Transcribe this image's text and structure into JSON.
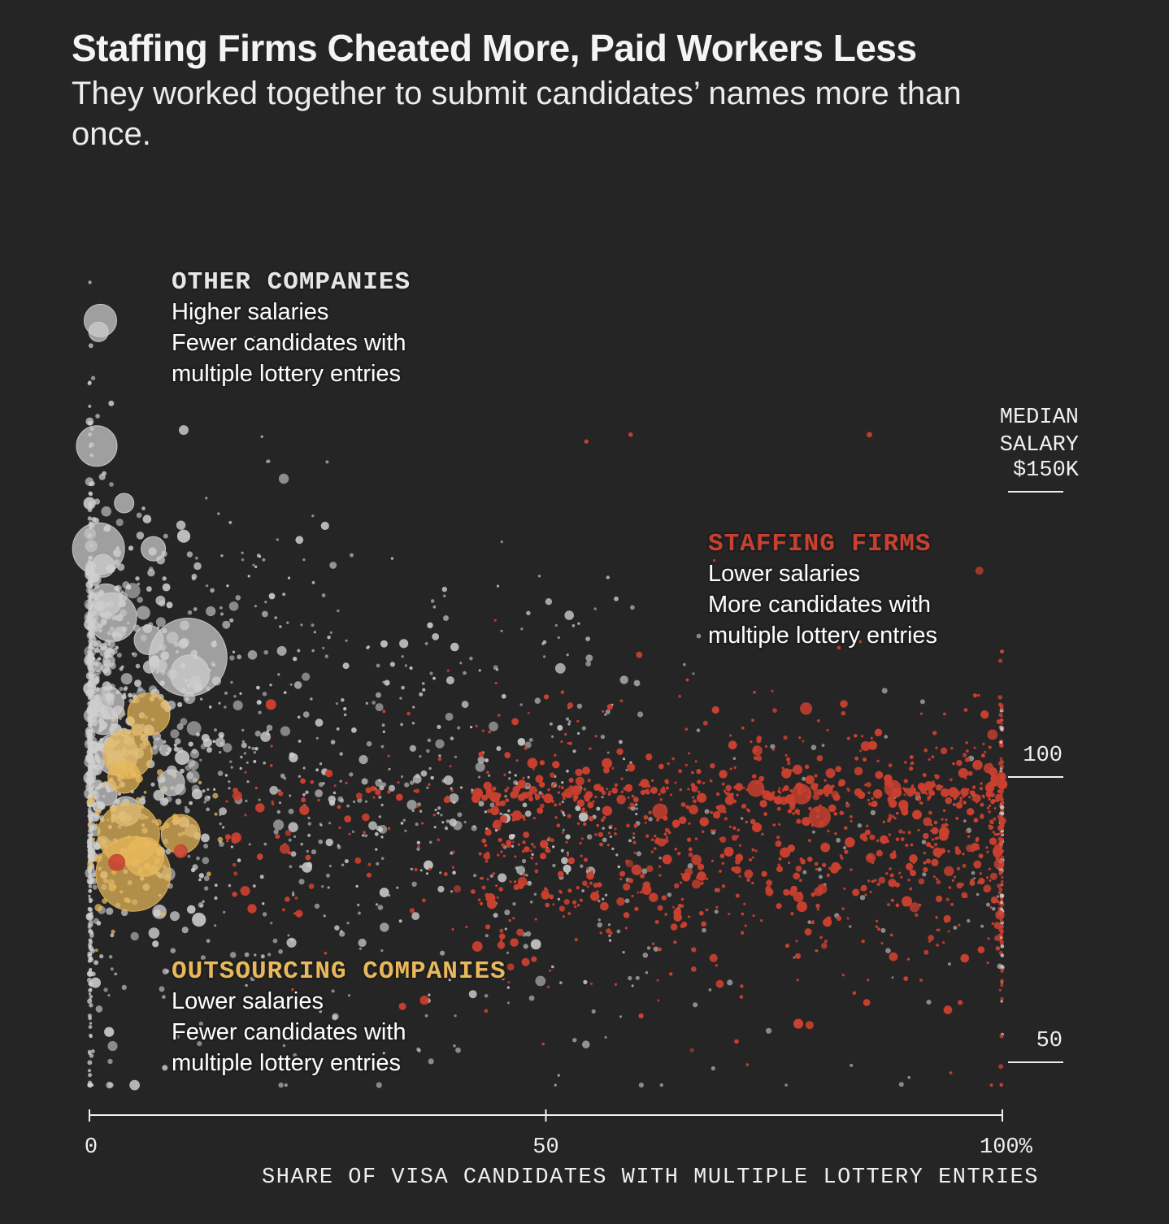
{
  "header": {
    "title": "Staffing Firms Cheated More, Paid Workers Less",
    "subtitle": "They worked together to submit candidates’ names more than once."
  },
  "colors": {
    "background": "#252525",
    "other": "#cfcfcf",
    "staffing": "#c8402f",
    "outsourcing": "#e8b85a",
    "axis": "#f0f0f0"
  },
  "chart_data": {
    "type": "scatter",
    "title": "Staffing Firms Cheated More, Paid Workers Less",
    "xlabel": "SHARE OF VISA CANDIDATES WITH MULTIPLE LOTTERY ENTRIES",
    "ylabel_lines": [
      "MEDIAN",
      "SALARY",
      "$150K"
    ],
    "xlim": [
      0,
      100
    ],
    "ylim": [
      44,
      192
    ],
    "x_ticks": [
      {
        "value": 0,
        "label": "0"
      },
      {
        "value": 50,
        "label": "50"
      },
      {
        "value": 100,
        "label": "100%"
      }
    ],
    "y_ticks": [
      {
        "value": 150,
        "label": "$150K"
      },
      {
        "value": 100,
        "label": "100"
      },
      {
        "value": 50,
        "label": "50"
      }
    ],
    "size_encoding": "bubble area proportional to number of visa candidates",
    "series": [
      {
        "name": "Other companies",
        "color": "#cfcfcf",
        "description": "Higher salaries; fewer candidates with multiple lottery entries",
        "highlight_points": [
          {
            "x": 1.2,
            "y": 180,
            "r": 20
          },
          {
            "x": 1.0,
            "y": 178,
            "r": 12
          },
          {
            "x": 0.8,
            "y": 158,
            "r": 25
          },
          {
            "x": 1.0,
            "y": 140,
            "r": 32
          },
          {
            "x": 1.5,
            "y": 137,
            "r": 14
          },
          {
            "x": 3.8,
            "y": 148,
            "r": 12
          },
          {
            "x": 7.0,
            "y": 140,
            "r": 15
          },
          {
            "x": 2.5,
            "y": 128,
            "r": 30
          },
          {
            "x": 1.8,
            "y": 131,
            "r": 20
          },
          {
            "x": 6.5,
            "y": 124,
            "r": 18
          },
          {
            "x": 10.8,
            "y": 121,
            "r": 48
          },
          {
            "x": 11.0,
            "y": 118,
            "r": 24
          },
          {
            "x": 2.0,
            "y": 113,
            "r": 20
          },
          {
            "x": 1.5,
            "y": 110,
            "r": 18
          },
          {
            "x": 3.0,
            "y": 104,
            "r": 26
          },
          {
            "x": 9.0,
            "y": 99,
            "r": 16
          },
          {
            "x": 1.8,
            "y": 97,
            "r": 14
          },
          {
            "x": 4.0,
            "y": 94,
            "r": 18
          }
        ]
      },
      {
        "name": "Outsourcing companies",
        "color": "#e8b85a",
        "description": "Lower salaries; fewer candidates with multiple lottery entries",
        "highlight_points": [
          {
            "x": 6.5,
            "y": 111,
            "r": 26
          },
          {
            "x": 4.2,
            "y": 104,
            "r": 30
          },
          {
            "x": 3.8,
            "y": 100,
            "r": 20
          },
          {
            "x": 4.3,
            "y": 90,
            "r": 38
          },
          {
            "x": 10.0,
            "y": 90,
            "r": 24
          },
          {
            "x": 4.8,
            "y": 83,
            "r": 46
          },
          {
            "x": 6.0,
            "y": 86,
            "r": 24
          }
        ]
      },
      {
        "name": "Staffing firms",
        "color": "#c8402f",
        "description": "Lower salaries; more candidates with multiple lottery entries",
        "highlight_points": [
          {
            "x": 78.0,
            "y": 97,
            "r": 12
          },
          {
            "x": 80.0,
            "y": 93,
            "r": 13
          },
          {
            "x": 73.0,
            "y": 98,
            "r": 10
          },
          {
            "x": 88.0,
            "y": 98,
            "r": 10
          },
          {
            "x": 62.5,
            "y": 94,
            "r": 9
          },
          {
            "x": 3.0,
            "y": 85,
            "r": 10
          },
          {
            "x": 10.0,
            "y": 87,
            "r": 8
          },
          {
            "x": 78.5,
            "y": 112,
            "r": 7
          }
        ]
      }
    ],
    "annotations": [
      {
        "key": "other",
        "heading": "OTHER COMPANIES",
        "lines": [
          "Higher salaries",
          "Fewer candidates with",
          "multiple lottery entries"
        ]
      },
      {
        "key": "staffing",
        "heading": "STAFFING FIRMS",
        "lines": [
          "Lower salaries",
          "More candidates with",
          "multiple lottery entries"
        ]
      },
      {
        "key": "outsourcing",
        "heading": "OUTSOURCING COMPANIES",
        "lines": [
          "Lower salaries",
          "Fewer candidates with",
          "multiple lottery entries"
        ]
      }
    ]
  }
}
